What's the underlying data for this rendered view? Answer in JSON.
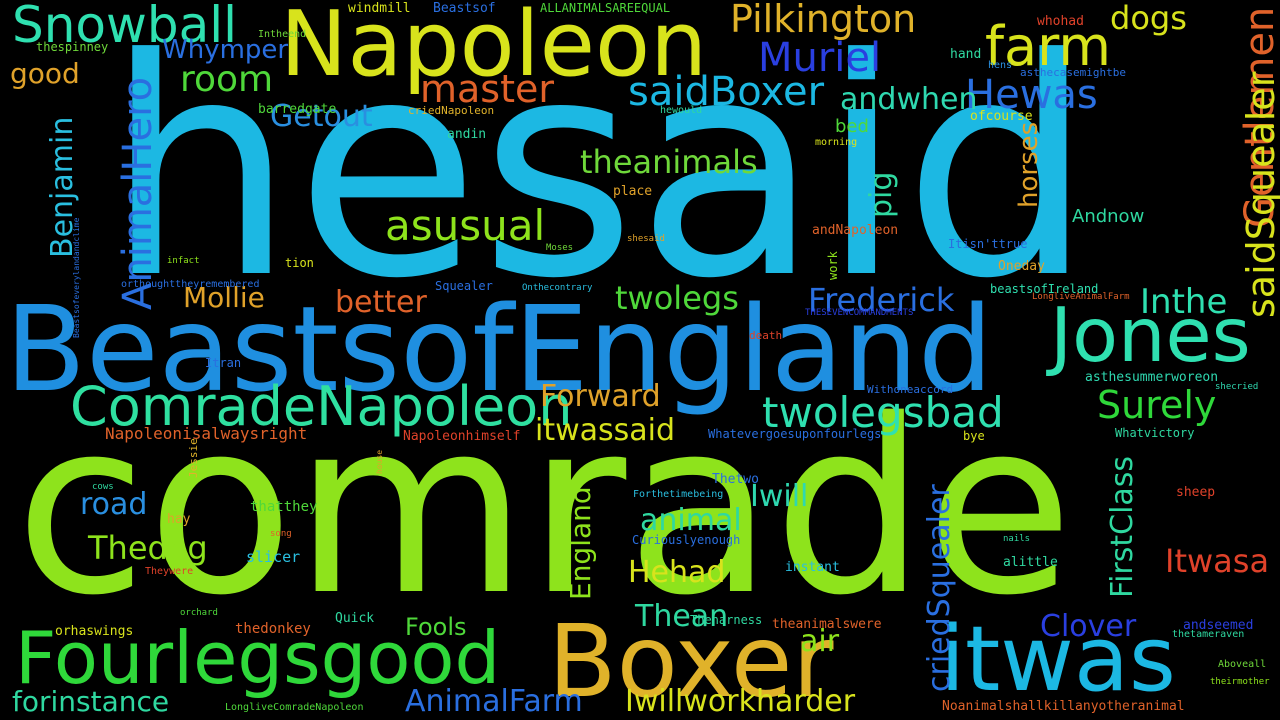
{
  "words": [
    {
      "t": "hesaid",
      "c": "#1cb8e3"
    },
    {
      "t": "comrade",
      "c": "#8ee31c"
    },
    {
      "t": "BeastsofEngland",
      "c": "#1f8fe0"
    },
    {
      "t": "Napoleon",
      "c": "#d8e31c"
    },
    {
      "t": "Boxer",
      "c": "#e0b22a"
    },
    {
      "t": "itwas",
      "c": "#1cb8e3"
    },
    {
      "t": "Fourlegsgood",
      "c": "#2fd83a"
    },
    {
      "t": "Jones",
      "c": "#2fe0b0"
    },
    {
      "t": "ComradeNapoleon",
      "c": "#2fe0a0"
    },
    {
      "t": "Snowball",
      "c": "#2fe0b0"
    },
    {
      "t": "farm",
      "c": "#d8e31c"
    },
    {
      "t": "Pilkington",
      "c": "#e0b22a"
    },
    {
      "t": "Muriel",
      "c": "#2a3fe0"
    },
    {
      "t": "Hewas",
      "c": "#2a6fe0"
    },
    {
      "t": "saidBoxer",
      "c": "#1cb8e3"
    },
    {
      "t": "master",
      "c": "#e0622a"
    },
    {
      "t": "room",
      "c": "#4fd83a"
    },
    {
      "t": "dogs",
      "c": "#d8e31c"
    },
    {
      "t": "Whymper",
      "c": "#2a6fe0"
    },
    {
      "t": "Getout",
      "c": "#2a8fe0"
    },
    {
      "t": "andwhen",
      "c": "#2fd8b0"
    },
    {
      "t": "good",
      "c": "#e0a22a"
    },
    {
      "t": "AnimalHero",
      "c": "#2a6fe0"
    },
    {
      "t": "Benjamin",
      "c": "#2abfe0"
    },
    {
      "t": "Gentlemen",
      "c": "#e0622a"
    },
    {
      "t": "saidSquealer",
      "c": "#d8e31c"
    },
    {
      "t": "theanimals",
      "c": "#6fd83a"
    },
    {
      "t": "asusual",
      "c": "#8ee31c"
    },
    {
      "t": "pig",
      "c": "#2fd8a0"
    },
    {
      "t": "horses",
      "c": "#e0a22a"
    },
    {
      "t": "bed",
      "c": "#4fd83a"
    },
    {
      "t": "Andnow",
      "c": "#2fd8a0"
    },
    {
      "t": "Mollie",
      "c": "#e0a22a"
    },
    {
      "t": "better",
      "c": "#e0622a"
    },
    {
      "t": "twolegs",
      "c": "#4fd83a"
    },
    {
      "t": "Frederick",
      "c": "#2a6fe0"
    },
    {
      "t": "Inthe",
      "c": "#2fe0b0"
    },
    {
      "t": "twolegsbad",
      "c": "#2fe0b0"
    },
    {
      "t": "Surely",
      "c": "#2fd83a"
    },
    {
      "t": "Forward",
      "c": "#e0a22a"
    },
    {
      "t": "itwassaid",
      "c": "#d8e31c"
    },
    {
      "t": "FirstClass",
      "c": "#2fd8a0"
    },
    {
      "t": "criedSquealer",
      "c": "#2a6fe0"
    },
    {
      "t": "England",
      "c": "#8ee31c"
    },
    {
      "t": "Iwill",
      "c": "#2fd8b0"
    },
    {
      "t": "road",
      "c": "#2a8fe0"
    },
    {
      "t": "Thedog",
      "c": "#8ee31c"
    },
    {
      "t": "animal",
      "c": "#2fd8a0"
    },
    {
      "t": "Hehad",
      "c": "#d8e31c"
    },
    {
      "t": "Itwasa",
      "c": "#e0422a"
    },
    {
      "t": "Thean",
      "c": "#2fd8a0"
    },
    {
      "t": "Clover",
      "c": "#2a3fe0"
    },
    {
      "t": "air",
      "c": "#8ee31c"
    },
    {
      "t": "Fools",
      "c": "#4fd83a"
    },
    {
      "t": "forinstance",
      "c": "#2fd8a0"
    },
    {
      "t": "AnimalFarm",
      "c": "#2a6fe0"
    },
    {
      "t": "Iwillworkharder",
      "c": "#d8e31c"
    },
    {
      "t": "Napoleonisalwaysright",
      "c": "#e0622a"
    },
    {
      "t": "Napoleonhimself",
      "c": "#e0422a"
    },
    {
      "t": "windmill",
      "c": "#d8e31c"
    },
    {
      "t": "Beastsof",
      "c": "#2a6fe0"
    },
    {
      "t": "ALLANIMALSAREEQUAL",
      "c": "#4fd83a"
    },
    {
      "t": "Intheend",
      "c": "#6fd83a"
    },
    {
      "t": "whohad",
      "c": "#e0422a"
    },
    {
      "t": "hand",
      "c": "#2fd8a0"
    },
    {
      "t": "hens",
      "c": "#2a8fe0"
    },
    {
      "t": "asthecasemightbe",
      "c": "#2a6fe0"
    },
    {
      "t": "thespinney",
      "c": "#6fd83a"
    },
    {
      "t": "barredgate",
      "c": "#4fd83a"
    },
    {
      "t": "criedNapoleon",
      "c": "#e0b22a"
    },
    {
      "t": "hewould",
      "c": "#2fd8a0"
    },
    {
      "t": "ofcourse",
      "c": "#d8e31c"
    },
    {
      "t": "andin",
      "c": "#2fd8a0"
    },
    {
      "t": "morning",
      "c": "#d8e31c"
    },
    {
      "t": "place",
      "c": "#e0a22a"
    },
    {
      "t": "shesaid",
      "c": "#e0a22a"
    },
    {
      "t": "andNapoleon",
      "c": "#e0622a"
    },
    {
      "t": "Itisn'ttrue",
      "c": "#2a6fe0"
    },
    {
      "t": "Moses",
      "c": "#6fd83a"
    },
    {
      "t": "infact",
      "c": "#8ee31c"
    },
    {
      "t": "tion",
      "c": "#d8e31c"
    },
    {
      "t": "Oneday",
      "c": "#e0a22a"
    },
    {
      "t": "work",
      "c": "#8ee31c"
    },
    {
      "t": "Squealer",
      "c": "#2a6fe0"
    },
    {
      "t": "Onthecontrary",
      "c": "#2abfe0"
    },
    {
      "t": "orthoughttheyremembered",
      "c": "#2a6fe0"
    },
    {
      "t": "beastsofIreland",
      "c": "#2fe0b0"
    },
    {
      "t": "LongliveAnimalFarm",
      "c": "#e0622a"
    },
    {
      "t": "THESEVENCOMMANDMENTS",
      "c": "#2a3fe0"
    },
    {
      "t": "death",
      "c": "#e0422a"
    },
    {
      "t": "Itran",
      "c": "#2a6fe0"
    },
    {
      "t": "Withoneaccord",
      "c": "#2a6fe0"
    },
    {
      "t": "asthesummerworeon",
      "c": "#2fd8b0"
    },
    {
      "t": "shecried",
      "c": "#2fd8b0"
    },
    {
      "t": "Beastsofeverylandandclime",
      "c": "#2a6fe0"
    },
    {
      "t": "Whatevergoesuponfourlegs",
      "c": "#2a6fe0"
    },
    {
      "t": "bye",
      "c": "#d8e31c"
    },
    {
      "t": "Whatvictory",
      "c": "#2fd8a0"
    },
    {
      "t": "house",
      "c": "#e0a22a"
    },
    {
      "t": "Jessie",
      "c": "#e0b22a"
    },
    {
      "t": "cows",
      "c": "#2fd8a0"
    },
    {
      "t": "thatthey",
      "c": "#4fd83a"
    },
    {
      "t": "Thetwo",
      "c": "#2a6fe0"
    },
    {
      "t": "Forthetimebeing",
      "c": "#2abfe0"
    },
    {
      "t": "sheep",
      "c": "#e0422a"
    },
    {
      "t": "hay",
      "c": "#e0a22a"
    },
    {
      "t": "song",
      "c": "#e0622a"
    },
    {
      "t": "Curiouslyenough",
      "c": "#2a6fe0"
    },
    {
      "t": "nails",
      "c": "#2fd8a0"
    },
    {
      "t": "slicer",
      "c": "#2abfe0"
    },
    {
      "t": "instant",
      "c": "#2abfe0"
    },
    {
      "t": "alittle",
      "c": "#2fd8a0"
    },
    {
      "t": "Theywere",
      "c": "#e0422a"
    },
    {
      "t": "orchard",
      "c": "#4fd83a"
    },
    {
      "t": "Quick",
      "c": "#2fd8a0"
    },
    {
      "t": "Theharness",
      "c": "#2fd8a0"
    },
    {
      "t": "andseemed",
      "c": "#2a3fe0"
    },
    {
      "t": "orhaswings",
      "c": "#d8e31c"
    },
    {
      "t": "thedonkey",
      "c": "#e0622a"
    },
    {
      "t": "theanimalswere",
      "c": "#e0622a"
    },
    {
      "t": "thetameraven",
      "c": "#2fd8a0"
    },
    {
      "t": "Aboveall",
      "c": "#6fd83a"
    },
    {
      "t": "theirmother",
      "c": "#8ee31c"
    },
    {
      "t": "LongliveComradeNapoleon",
      "c": "#4fd83a"
    },
    {
      "t": "Noanimalshallkillanyotheranimal",
      "c": "#e0622a"
    }
  ]
}
